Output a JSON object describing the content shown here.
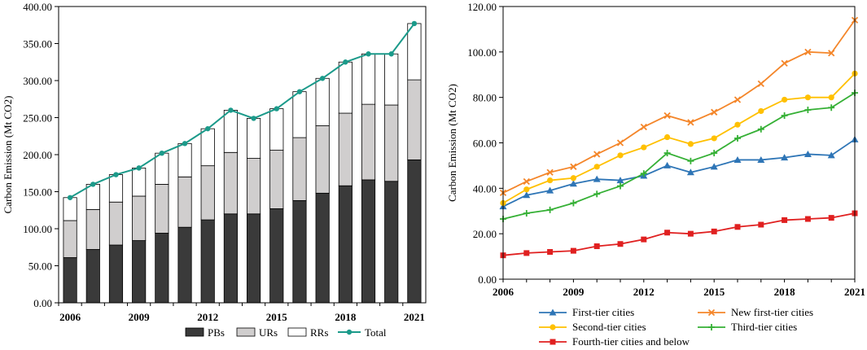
{
  "chart_data": [
    {
      "type": "bar",
      "stacked": true,
      "categories": [
        "2006",
        "2007",
        "2008",
        "2009",
        "2010",
        "2011",
        "2012",
        "2013",
        "2014",
        "2015",
        "2016",
        "2017",
        "2018",
        "2019",
        "2020",
        "2021"
      ],
      "x_tick_labels": [
        "2006",
        "2009",
        "2012",
        "2015",
        "2018",
        "2021"
      ],
      "series": [
        {
          "name": "PBs",
          "values": [
            61,
            72,
            78,
            84,
            94,
            102,
            112,
            120,
            120,
            127,
            138,
            148,
            158,
            166,
            164,
            193
          ],
          "color": "#3a3a3a"
        },
        {
          "name": "URs",
          "values": [
            50,
            54,
            58,
            60,
            66,
            68,
            73,
            83,
            75,
            79,
            85,
            91,
            98,
            102,
            103,
            108
          ],
          "color": "#d0cece"
        },
        {
          "name": "RRs",
          "values": [
            31,
            34,
            37,
            38,
            42,
            45,
            50,
            57,
            54,
            56,
            62,
            64,
            69,
            68,
            69,
            76
          ],
          "color": "#ffffff"
        }
      ],
      "line_series": {
        "name": "Total",
        "values": [
          142,
          160,
          173,
          182,
          202,
          215,
          235,
          260,
          249,
          262,
          285,
          303,
          325,
          336,
          336,
          377
        ],
        "color": "#1b9a8a"
      },
      "ylabel": "Carbon Emission  (Mt CO2)",
      "ylim": [
        0,
        400
      ],
      "y_ticks": [
        "0.00",
        "50.00",
        "100.00",
        "150.00",
        "200.00",
        "250.00",
        "300.00",
        "350.00",
        "400.00"
      ],
      "legend": [
        "PBs",
        "URs",
        "RRs",
        "Total"
      ],
      "legend_position": "bottom"
    },
    {
      "type": "line",
      "x": [
        "2006",
        "2007",
        "2008",
        "2009",
        "2010",
        "2011",
        "2012",
        "2013",
        "2014",
        "2015",
        "2016",
        "2017",
        "2018",
        "2019",
        "2020",
        "2021"
      ],
      "x_tick_labels": [
        "2006",
        "2009",
        "2012",
        "2015",
        "2018",
        "2021"
      ],
      "series": [
        {
          "name": "First-tier cities",
          "marker": "triangle",
          "color": "#2e75b6",
          "values": [
            32,
            37,
            39,
            42,
            44,
            43.5,
            45.5,
            50,
            47,
            49.5,
            52.5,
            52.5,
            53.5,
            55,
            54.5,
            61.5
          ]
        },
        {
          "name": "New first-tier cities",
          "marker": "cross",
          "color": "#f4862a",
          "values": [
            38,
            43,
            47,
            49.5,
            55,
            60,
            67,
            72,
            69,
            73.5,
            79,
            86,
            95,
            100,
            99.5,
            114
          ]
        },
        {
          "name": "Second-tier cities",
          "marker": "circle",
          "color": "#ffc000",
          "values": [
            33.5,
            39.5,
            43.5,
            44.5,
            49.5,
            54.5,
            58,
            62.5,
            59.5,
            62,
            68,
            74,
            79,
            80,
            80,
            90.5
          ]
        },
        {
          "name": "Third-tier cities",
          "marker": "plus",
          "color": "#35b035",
          "values": [
            26.5,
            29,
            30.5,
            33.5,
            37.5,
            41,
            46.5,
            55.5,
            52,
            55.5,
            62,
            66,
            72,
            74.5,
            75.5,
            82
          ]
        },
        {
          "name": "Fourth-tier cities and below",
          "marker": "square",
          "color": "#e02020",
          "values": [
            10.5,
            11.5,
            12,
            12.5,
            14.5,
            15.5,
            17.5,
            20.5,
            20,
            21,
            23,
            24,
            26,
            26.5,
            27,
            29
          ]
        }
      ],
      "ylabel": "Carbon Emission  (Mt CO2)",
      "ylim": [
        0,
        120
      ],
      "y_ticks": [
        "0.00",
        "20.00",
        "40.00",
        "60.00",
        "80.00",
        "100.00",
        "120.00"
      ],
      "legend_position": "bottom"
    }
  ]
}
